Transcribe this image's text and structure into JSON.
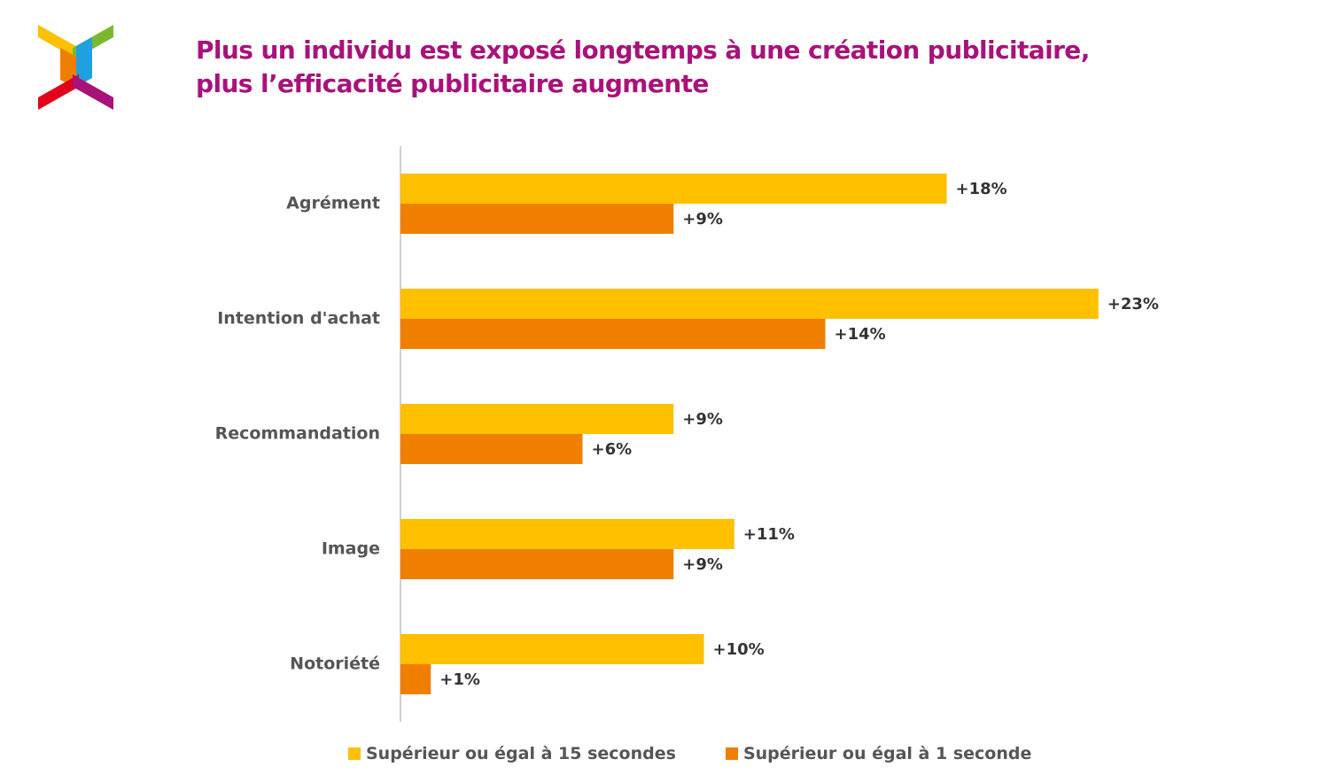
{
  "title": {
    "line1": "Plus un individu est exposé longtemps à une création publicitaire,",
    "line2": "plus l’efficacité publicitaire augmente"
  },
  "colors": {
    "title": "#A8127A",
    "series_15s": "#FFC000",
    "series_1s": "#F07F00",
    "axis": "#D0D0D0",
    "logo_yellow": "#FFC000",
    "logo_green": "#7CB82F",
    "logo_orange": "#F07F00",
    "logo_blue": "#1FA0E0",
    "logo_red": "#E3001B",
    "logo_purple": "#A8127A"
  },
  "chart_data": {
    "type": "bar",
    "orientation": "horizontal",
    "categories": [
      "Agrément",
      "Intention d'achat",
      "Recommandation",
      "Image",
      "Notoriété"
    ],
    "series": [
      {
        "name": "Supérieur ou égal à 15 secondes",
        "values": [
          18,
          23,
          9,
          11,
          10
        ],
        "labels": [
          "+18%",
          "+23%",
          "+9%",
          "+11%",
          "+10%"
        ]
      },
      {
        "name": "Supérieur ou égal à 1 seconde",
        "values": [
          9,
          14,
          6,
          9,
          1
        ],
        "labels": [
          "+9%",
          "+14%",
          "+6%",
          "+9%",
          "+1%"
        ]
      }
    ],
    "xlim": [
      0,
      30
    ],
    "grid": false,
    "legend_position": "bottom"
  }
}
